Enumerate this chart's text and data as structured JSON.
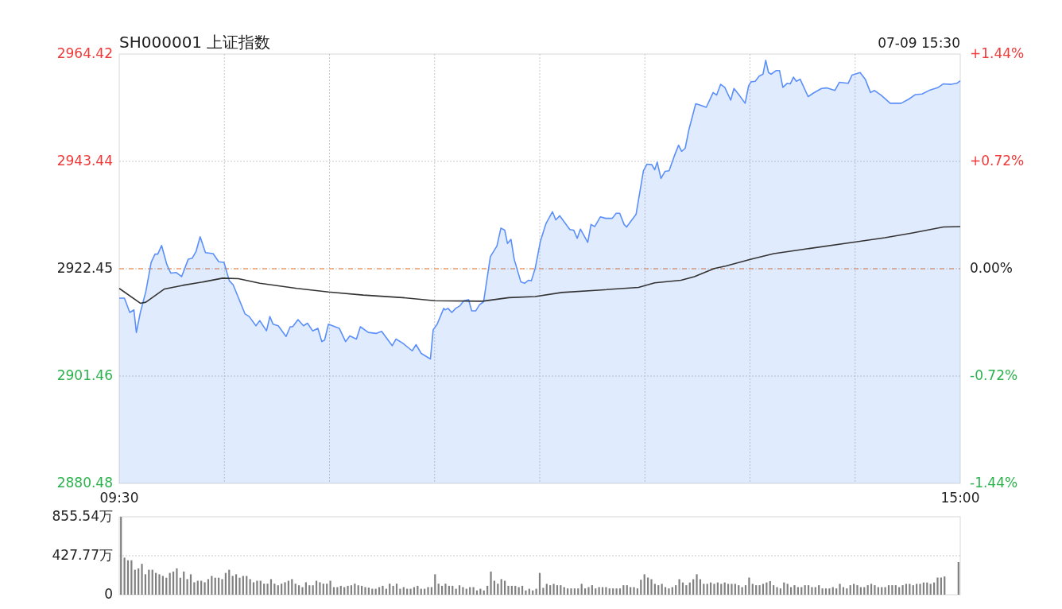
{
  "chart_data": [
    {
      "type": "area",
      "title": "SH000001 上证指数",
      "subtitle": "07-09 15:30",
      "xlim": [
        9.5,
        15
      ],
      "xticks": [
        {
          "value": 9.5,
          "label": "09:30"
        },
        {
          "value": 10.1875,
          "label": null
        },
        {
          "value": 10.875,
          "label": null
        },
        {
          "value": 11.5625,
          "label": null
        },
        {
          "value": 12.25,
          "label": null
        },
        {
          "value": 12.9375,
          "label": null
        },
        {
          "value": 13.625,
          "label": null
        },
        {
          "value": 14.3125,
          "label": null
        },
        {
          "value": 15,
          "label": "15:00"
        }
      ],
      "ylim": [
        2880.48,
        2964.42
      ],
      "yticks": [
        2880.48,
        2901.46,
        2922.45,
        2943.44,
        2964.42
      ],
      "y2lim": [
        -1.44,
        1.44
      ],
      "y2ticks": [
        {
          "value": -1.44,
          "label": "-1.44%"
        },
        {
          "value": -0.72,
          "label": "-0.72%"
        },
        {
          "value": 0,
          "label": "0.00%"
        },
        {
          "value": 0.72,
          "label": "+0.72%"
        },
        {
          "value": 1.44,
          "label": "+1.44%"
        }
      ],
      "grid": true,
      "ref_lines": [
        {
          "axis": "y",
          "value": 2922.45,
          "color": "#f0a070",
          "line_style": "dashed"
        }
      ],
      "series": [
        {
          "color": "#5b8ff9",
          "x": [
            9.5,
            9.534,
            9.569,
            9.596,
            9.612,
            9.638,
            9.674,
            9.709,
            9.734,
            9.752,
            9.777,
            9.812,
            9.837,
            9.874,
            9.908,
            9.951,
            9.977,
            10.002,
            10.029,
            10.064,
            10.114,
            10.151,
            10.185,
            10.22,
            10.245,
            10.323,
            10.35,
            10.394,
            10.419,
            10.463,
            10.485,
            10.506,
            10.54,
            10.591,
            10.618,
            10.634,
            10.669,
            10.705,
            10.731,
            10.765,
            10.799,
            10.825,
            10.843,
            10.868,
            10.939,
            10.98,
            11.008,
            11.051,
            11.077,
            11.129,
            11.18,
            11.216,
            11.285,
            11.31,
            11.354,
            11.416,
            11.441,
            11.475,
            11.535,
            11.553,
            11.579,
            11.622,
            11.631,
            11.65,
            11.675,
            11.7,
            11.728,
            11.753,
            11.785,
            11.805,
            11.831,
            11.856,
            11.883,
            11.927,
            11.97,
            11.996,
            12.021,
            12.039,
            12.062,
            12.083,
            12.126,
            12.151,
            12.177,
            12.195,
            12.22,
            12.255,
            12.291,
            12.333,
            12.355,
            12.381,
            12.447,
            12.472,
            12.495,
            12.516,
            12.564,
            12.585,
            12.61,
            12.647,
            12.681,
            12.724,
            12.75,
            12.773,
            12.802,
            12.818,
            12.88,
            12.928,
            12.951,
            12.983,
            13.002,
            13.018,
            13.043,
            13.07,
            13.096,
            13.13,
            13.158,
            13.178,
            13.201,
            13.226,
            13.27,
            13.304,
            13.339,
            13.384,
            13.407,
            13.433,
            13.46,
            13.499,
            13.52,
            13.554,
            13.593,
            13.616,
            13.632,
            13.659,
            13.685,
            13.71,
            13.728,
            13.746,
            13.763,
            13.797,
            13.818,
            13.84,
            13.868,
            13.889,
            13.909,
            13.928,
            13.953,
            14.005,
            14.04,
            14.093,
            14.127,
            14.18,
            14.209,
            14.267,
            14.292,
            14.345,
            14.379,
            14.413,
            14.439,
            14.482,
            14.542,
            14.613,
            14.663,
            14.707,
            14.75,
            14.803,
            14.856,
            14.89,
            14.94,
            14.977,
            15
          ],
          "values": [
            2916.7,
            2916.7,
            2913.9,
            2914.4,
            2910.0,
            2913.9,
            2918.0,
            2923.7,
            2925.3,
            2925.3,
            2927.0,
            2923.2,
            2921.6,
            2921.7,
            2920.9,
            2924.3,
            2924.5,
            2925.8,
            2928.7,
            2925.6,
            2925.4,
            2923.8,
            2923.7,
            2920.1,
            2919.3,
            2913.6,
            2913.1,
            2911.3,
            2912.3,
            2910.3,
            2913.1,
            2911.6,
            2911.3,
            2909.2,
            2911.1,
            2911.1,
            2912.5,
            2911.3,
            2911.8,
            2910.3,
            2910.8,
            2908.2,
            2908.5,
            2911.6,
            2910.8,
            2908.2,
            2909.3,
            2908.7,
            2911.1,
            2910.0,
            2909.8,
            2910.2,
            2907.4,
            2908.7,
            2907.9,
            2906.4,
            2907.6,
            2905.9,
            2904.8,
            2910.5,
            2911.6,
            2914.7,
            2914.4,
            2914.7,
            2913.9,
            2914.7,
            2915.2,
            2916.2,
            2916.4,
            2914.2,
            2914.2,
            2915.4,
            2916.0,
            2924.8,
            2926.9,
            2930.4,
            2930.0,
            2927.4,
            2928.2,
            2924.3,
            2919.9,
            2919.6,
            2920.2,
            2920.1,
            2922.5,
            2927.9,
            2931.3,
            2933.6,
            2932.0,
            2932.8,
            2930.1,
            2930.0,
            2928.4,
            2930.2,
            2927.6,
            2931.1,
            2930.7,
            2932.6,
            2932.3,
            2932.3,
            2933.3,
            2933.3,
            2931.1,
            2930.6,
            2933.1,
            2941.6,
            2942.9,
            2942.8,
            2941.8,
            2943.3,
            2940.1,
            2941.5,
            2941.6,
            2944.5,
            2946.6,
            2945.4,
            2946.0,
            2949.7,
            2954.7,
            2954.4,
            2954.0,
            2956.9,
            2956.4,
            2958.5,
            2957.9,
            2955.4,
            2957.7,
            2956.4,
            2954.8,
            2958.2,
            2959.0,
            2959.1,
            2960.1,
            2960.5,
            2963.2,
            2960.8,
            2960.5,
            2961.2,
            2961.2,
            2957.9,
            2958.7,
            2958.6,
            2959.9,
            2959.1,
            2959.5,
            2956.1,
            2956.8,
            2957.7,
            2957.8,
            2957.3,
            2958.9,
            2958.7,
            2960.3,
            2960.8,
            2959.5,
            2956.9,
            2957.3,
            2956.4,
            2954.8,
            2954.8,
            2955.6,
            2956.5,
            2956.6,
            2957.4,
            2957.9,
            2958.6,
            2958.5,
            2958.7,
            2959.2
          ]
        },
        {
          "type": "line",
          "color": "#333333",
          "x": [
            9.5,
            9.638,
            9.674,
            9.796,
            9.915,
            10.055,
            10.176,
            10.279,
            10.419,
            10.662,
            10.868,
            11.095,
            11.354,
            11.563,
            11.874,
            12.048,
            12.22,
            12.394,
            12.653,
            12.896,
            13.002,
            13.174,
            13.261,
            13.391,
            13.469,
            13.632,
            13.781,
            13.987,
            14.317,
            14.507,
            14.681,
            14.89,
            15
          ],
          "values": [
            2918.6,
            2915.7,
            2915.9,
            2918.5,
            2919.2,
            2919.9,
            2920.6,
            2920.5,
            2919.6,
            2918.6,
            2917.9,
            2917.3,
            2916.8,
            2916.2,
            2916.1,
            2916.8,
            2917.0,
            2917.8,
            2918.3,
            2918.8,
            2919.7,
            2920.2,
            2920.9,
            2922.5,
            2923.0,
            2924.3,
            2925.4,
            2926.3,
            2927.7,
            2928.5,
            2929.4,
            2930.6,
            2930.7
          ]
        }
      ]
    },
    {
      "type": "bar",
      "color": "#808080",
      "grid": "y",
      "tick_labels": "y",
      "ylim": [
        0,
        855.54
      ],
      "yticks": [
        0,
        {
          "value": 427.77,
          "label": "427.77万"
        },
        {
          "value": 855.54,
          "label": "855.54万"
        }
      ],
      "categories": [
        null,
        null,
        null,
        null,
        null,
        null,
        null,
        null,
        null,
        null,
        null,
        null,
        null,
        null,
        null,
        null,
        null,
        null,
        null,
        null,
        null,
        null,
        null,
        null,
        null,
        null,
        null,
        null,
        null,
        null,
        null,
        null,
        null,
        null,
        null,
        null,
        null,
        null,
        null,
        null,
        null,
        null,
        null,
        null,
        null,
        null,
        null,
        null,
        null,
        null,
        null,
        null,
        null,
        null,
        null,
        null,
        null,
        null,
        null,
        null,
        null,
        null,
        null,
        null,
        null,
        null,
        null,
        null,
        null,
        null,
        null,
        null,
        null,
        null,
        null,
        null,
        null,
        null,
        null,
        null,
        null,
        null,
        null,
        null,
        null,
        null,
        null,
        null,
        null,
        null,
        null,
        null,
        null,
        null,
        null,
        null,
        null,
        null,
        null,
        null,
        null,
        null,
        null,
        null,
        null,
        null,
        null,
        null,
        null,
        null,
        null,
        null,
        null,
        null,
        null,
        null,
        null,
        null,
        null,
        null,
        null,
        null,
        null,
        null,
        null,
        null,
        null,
        null,
        null,
        null,
        null,
        null,
        null,
        null,
        null,
        null,
        null,
        null,
        null,
        null,
        null,
        null,
        null,
        null,
        null,
        null,
        null,
        null,
        null,
        null,
        null,
        null,
        null,
        null,
        null,
        null,
        null,
        null,
        null,
        null,
        null,
        null,
        null,
        null,
        null,
        null,
        null,
        null,
        null,
        null,
        null,
        null,
        null,
        null,
        null,
        null,
        null,
        null,
        null,
        null,
        null,
        null,
        null,
        null,
        null,
        null,
        null,
        null,
        null,
        null,
        null,
        null,
        null,
        null,
        null,
        null,
        null,
        null,
        null,
        null,
        null,
        null,
        null,
        null,
        null,
        null,
        null,
        null,
        null,
        null,
        null,
        null,
        null,
        null,
        null,
        null,
        null,
        null,
        null,
        null,
        null,
        null,
        null,
        null,
        null,
        null,
        null,
        null,
        null,
        null,
        null,
        null,
        null,
        null,
        null,
        null,
        null,
        null,
        null,
        null,
        null
      ],
      "values": [
        855,
        407,
        378,
        378,
        274,
        289,
        339,
        224,
        274,
        274,
        239,
        224,
        206,
        186,
        239,
        254,
        289,
        186,
        254,
        171,
        224,
        136,
        153,
        153,
        136,
        171,
        206,
        186,
        186,
        171,
        239,
        274,
        206,
        224,
        186,
        206,
        206,
        171,
        136,
        153,
        153,
        121,
        121,
        171,
        121,
        103,
        121,
        136,
        153,
        171,
        121,
        103,
        83,
        136,
        103,
        103,
        153,
        136,
        121,
        121,
        153,
        83,
        83,
        97,
        83,
        97,
        103,
        121,
        103,
        97,
        83,
        77,
        65,
        65,
        83,
        97,
        65,
        121,
        97,
        121,
        65,
        83,
        65,
        65,
        83,
        97,
        65,
        65,
        83,
        83,
        224,
        121,
        97,
        121,
        97,
        97,
        65,
        103,
        83,
        65,
        83,
        83,
        47,
        65,
        47,
        97,
        254,
        153,
        121,
        171,
        153,
        97,
        97,
        97,
        83,
        97,
        47,
        65,
        47,
        65,
        239,
        75,
        119,
        104,
        119,
        104,
        104,
        83,
        69,
        69,
        69,
        69,
        119,
        69,
        83,
        104,
        69,
        83,
        83,
        83,
        69,
        69,
        69,
        69,
        104,
        104,
        83,
        83,
        69,
        164,
        224,
        188,
        170,
        119,
        104,
        119,
        83,
        69,
        83,
        104,
        170,
        134,
        104,
        134,
        170,
        224,
        170,
        119,
        119,
        134,
        119,
        134,
        119,
        134,
        119,
        119,
        119,
        104,
        83,
        104,
        188,
        119,
        104,
        104,
        119,
        134,
        149,
        104,
        83,
        69,
        134,
        119,
        83,
        104,
        83,
        83,
        104,
        104,
        83,
        83,
        104,
        69,
        69,
        69,
        83,
        69,
        119,
        83,
        69,
        104,
        119,
        104,
        83,
        83,
        104,
        119,
        104,
        83,
        83,
        83,
        104,
        104,
        104,
        83,
        104,
        119,
        119,
        104,
        119,
        119,
        134,
        134,
        119,
        134,
        188,
        188,
        200,
        0,
        0,
        0,
        358
      ]
    }
  ]
}
